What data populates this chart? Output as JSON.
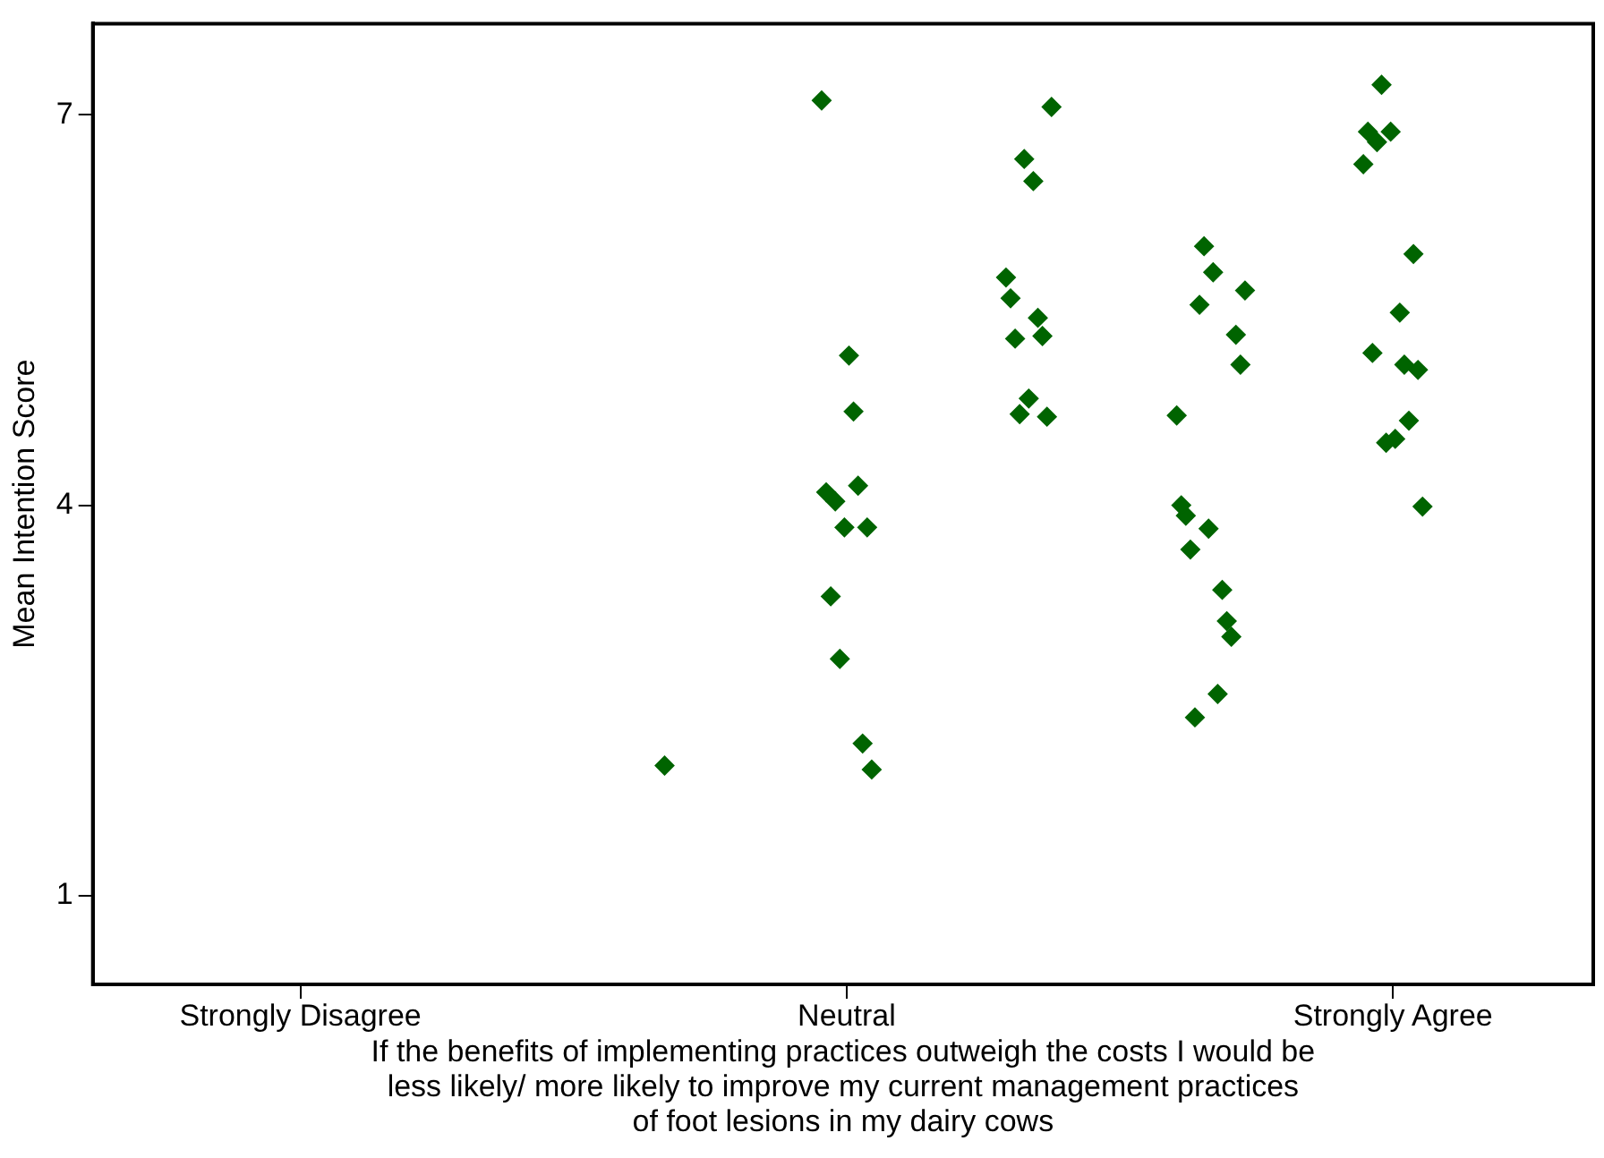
{
  "chart_data": {
    "type": "scatter",
    "xlabel": "If the benefits of implementing practices outweigh the costs I would be\nless likely/ more likely to improve my current management practices\nof foot lesions in my dairy cows",
    "ylabel": "Mean Intention Score",
    "categories": [
      "Strongly Disagree",
      null,
      null,
      "Neutral",
      null,
      null,
      "Strongly Agree"
    ],
    "series": [
      {
        "color": "#006400",
        "values": [
          null,
          null,
          2.0,
          7.11,
          5.75,
          4.69,
          6.62
        ]
      },
      {
        "color": "#006400",
        "values": [
          null,
          null,
          null,
          4.1,
          5.59,
          4.0,
          6.87
        ]
      },
      {
        "color": "#006400",
        "values": [
          null,
          null,
          null,
          3.3,
          5.28,
          3.92,
          5.17
        ]
      },
      {
        "color": "#006400",
        "values": [
          null,
          null,
          null,
          4.03,
          4.7,
          3.66,
          6.79
        ]
      },
      {
        "color": "#006400",
        "values": [
          null,
          null,
          null,
          2.82,
          6.66,
          2.37,
          7.23
        ]
      },
      {
        "color": "#006400",
        "values": [
          null,
          null,
          null,
          3.83,
          4.82,
          5.54,
          4.48
        ]
      },
      {
        "color": "#006400",
        "values": [
          null,
          null,
          null,
          5.15,
          6.49,
          5.99,
          6.87
        ]
      },
      {
        "color": "#006400",
        "values": [
          null,
          null,
          null,
          4.72,
          5.44,
          3.82,
          4.51
        ]
      },
      {
        "color": "#006400",
        "values": [
          null,
          null,
          null,
          4.15,
          5.3,
          5.79,
          5.48
        ]
      },
      {
        "color": "#006400",
        "values": [
          null,
          null,
          null,
          2.17,
          4.68,
          2.55,
          5.08
        ]
      },
      {
        "color": "#006400",
        "values": [
          null,
          null,
          null,
          3.83,
          7.06,
          3.35,
          4.65
        ]
      },
      {
        "color": "#006400",
        "values": [
          null,
          null,
          null,
          1.97,
          null,
          3.11,
          5.93
        ]
      },
      {
        "color": "#006400",
        "values": [
          null,
          null,
          null,
          null,
          null,
          2.99,
          5.04
        ]
      },
      {
        "color": "#006400",
        "values": [
          null,
          null,
          null,
          null,
          null,
          5.31,
          3.99
        ]
      },
      {
        "color": "#006400",
        "values": [
          null,
          null,
          null,
          null,
          null,
          5.08,
          null
        ]
      },
      {
        "color": "#006400",
        "values": [
          null,
          null,
          null,
          null,
          null,
          5.65,
          null
        ]
      }
    ],
    "ylim": [
      0.32,
      7.7
    ],
    "yticks": [
      1,
      4,
      7
    ],
    "marker": "diamond",
    "grid": false,
    "legend": false
  }
}
